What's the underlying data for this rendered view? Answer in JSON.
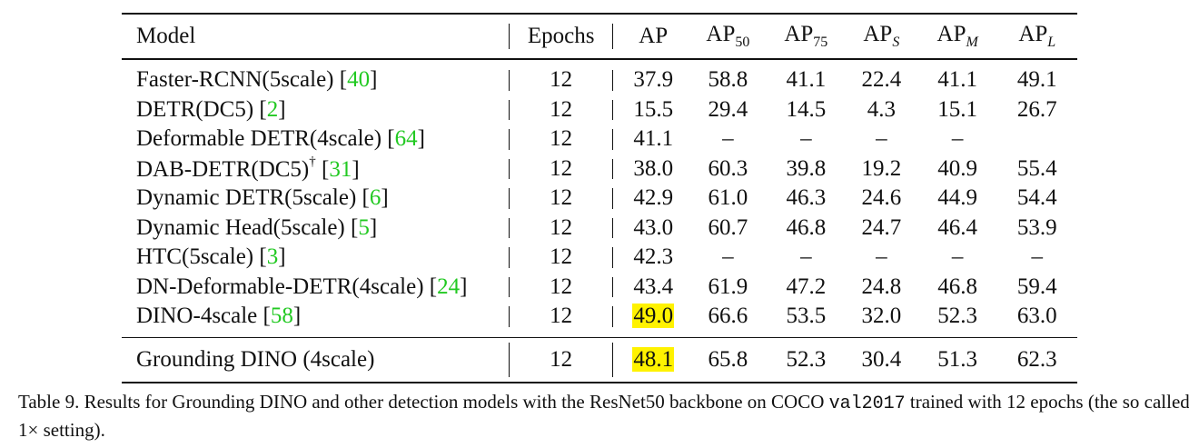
{
  "table": {
    "headers": {
      "model": "Model",
      "epochs": "Epochs",
      "ap": "AP",
      "ap50": {
        "base": "AP",
        "sub": "50"
      },
      "ap75": {
        "base": "AP",
        "sub": "75"
      },
      "aps": {
        "base": "AP",
        "sub": "S"
      },
      "apm": {
        "base": "AP",
        "sub": "M"
      },
      "apl": {
        "base": "AP",
        "sub": "L"
      }
    },
    "rows": [
      {
        "name": "Faster-RCNN(5scale)",
        "sup": "",
        "cite": "40",
        "epochs": "12",
        "ap": "37.9",
        "ap50": "58.8",
        "ap75": "41.1",
        "aps": "22.4",
        "apm": "41.1",
        "apl": "49.1"
      },
      {
        "name": "DETR(DC5)",
        "sup": "",
        "cite": "2",
        "epochs": "12",
        "ap": "15.5",
        "ap50": "29.4",
        "ap75": "14.5",
        "aps": "4.3",
        "apm": "15.1",
        "apl": "26.7"
      },
      {
        "name": "Deformable DETR(4scale)",
        "sup": "",
        "cite": "64",
        "epochs": "12",
        "ap": "41.1",
        "ap50": "–",
        "ap75": "–",
        "aps": "–",
        "apm": "–",
        "apl": ""
      },
      {
        "name": "DAB-DETR(DC5)",
        "sup": "†",
        "cite": "31",
        "epochs": "12",
        "ap": "38.0",
        "ap50": "60.3",
        "ap75": "39.8",
        "aps": "19.2",
        "apm": "40.9",
        "apl": "55.4"
      },
      {
        "name": "Dynamic DETR(5scale)",
        "sup": "",
        "cite": "6",
        "epochs": "12",
        "ap": "42.9",
        "ap50": "61.0",
        "ap75": "46.3",
        "aps": "24.6",
        "apm": "44.9",
        "apl": "54.4"
      },
      {
        "name": "Dynamic Head(5scale)",
        "sup": "",
        "cite": "5",
        "epochs": "12",
        "ap": "43.0",
        "ap50": "60.7",
        "ap75": "46.8",
        "aps": "24.7",
        "apm": "46.4",
        "apl": "53.9"
      },
      {
        "name": "HTC(5scale)",
        "sup": "",
        "cite": "3",
        "epochs": "12",
        "ap": "42.3",
        "ap50": "–",
        "ap75": "–",
        "aps": "–",
        "apm": "–",
        "apl": "–"
      },
      {
        "name": "DN-Deformable-DETR(4scale)",
        "sup": "",
        "cite": "24",
        "epochs": "12",
        "ap": "43.4",
        "ap50": "61.9",
        "ap75": "47.2",
        "aps": "24.8",
        "apm": "46.8",
        "apl": "59.4"
      },
      {
        "name": "DINO-4scale",
        "sup": "",
        "cite": "58",
        "epochs": "12",
        "ap": "49.0",
        "ap_highlight": true,
        "ap50": "66.6",
        "ap75": "53.5",
        "aps": "32.0",
        "apm": "52.3",
        "apl": "63.0"
      }
    ],
    "final_row": {
      "name": "Grounding DINO (4scale)",
      "epochs": "12",
      "ap": "48.1",
      "ap_highlight": true,
      "ap50": "65.8",
      "ap75": "52.3",
      "aps": "30.4",
      "apm": "51.3",
      "apl": "62.3"
    }
  },
  "caption": {
    "label": "Table 9.",
    "text_before_code": "Results for Grounding DINO and other detection models with the ResNet50 backbone on COCO",
    "code": "val2017",
    "text_after_code": "trained with 12 epochs (the so called 1× setting)."
  },
  "colors": {
    "citation": "#22c922",
    "highlight": "#fff200"
  }
}
